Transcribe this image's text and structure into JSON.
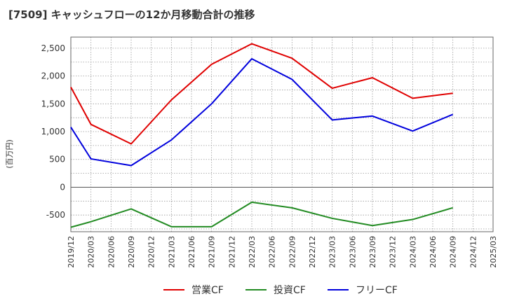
{
  "chart_data": {
    "type": "line",
    "title": "[7509]  キャッシュフローの12か月移動合計の推移",
    "ylabel": "(百万円)",
    "xlabel": "",
    "ylim": [
      -800,
      2700
    ],
    "y_ticks": [
      -500,
      0,
      500,
      1000,
      1500,
      2000,
      2500
    ],
    "y_tick_labels": [
      "-500",
      "0",
      "500",
      "1,000",
      "1,500",
      "2,000",
      "2,500"
    ],
    "x_tick_labels": [
      "2019/12",
      "2020/03",
      "2020/06",
      "2020/09",
      "2020/12",
      "2021/03",
      "2021/06",
      "2021/09",
      "2021/12",
      "2022/03",
      "2022/06",
      "2022/09",
      "2022/12",
      "2023/03",
      "2023/06",
      "2023/09",
      "2023/12",
      "2024/03",
      "2024/06",
      "2024/09",
      "2024/12",
      "2025/03"
    ],
    "grid": true,
    "legend_position": "bottom",
    "series": [
      {
        "name": "営業CF",
        "color": "#e00000",
        "points": [
          [
            "2019/12",
            1800
          ],
          [
            "2020/03",
            1130
          ],
          [
            "2020/09",
            780
          ],
          [
            "2021/03",
            1570
          ],
          [
            "2021/09",
            2210
          ],
          [
            "2022/03",
            2580
          ],
          [
            "2022/09",
            2320
          ],
          [
            "2023/03",
            1780
          ],
          [
            "2023/09",
            1970
          ],
          [
            "2024/03",
            1600
          ],
          [
            "2024/09",
            1690
          ]
        ]
      },
      {
        "name": "投資CF",
        "color": "#228b22",
        "points": [
          [
            "2019/12",
            -720
          ],
          [
            "2020/03",
            -620
          ],
          [
            "2020/09",
            -390
          ],
          [
            "2021/03",
            -710
          ],
          [
            "2021/09",
            -710
          ],
          [
            "2022/03",
            -270
          ],
          [
            "2022/09",
            -370
          ],
          [
            "2023/03",
            -560
          ],
          [
            "2023/09",
            -690
          ],
          [
            "2024/03",
            -580
          ],
          [
            "2024/09",
            -370
          ]
        ]
      },
      {
        "name": "フリーCF",
        "color": "#0000dd",
        "points": [
          [
            "2019/12",
            1080
          ],
          [
            "2020/03",
            510
          ],
          [
            "2020/09",
            390
          ],
          [
            "2021/03",
            850
          ],
          [
            "2021/09",
            1500
          ],
          [
            "2022/03",
            2310
          ],
          [
            "2022/09",
            1940
          ],
          [
            "2023/03",
            1210
          ],
          [
            "2023/09",
            1280
          ],
          [
            "2024/03",
            1010
          ],
          [
            "2024/09",
            1310
          ]
        ]
      }
    ]
  }
}
